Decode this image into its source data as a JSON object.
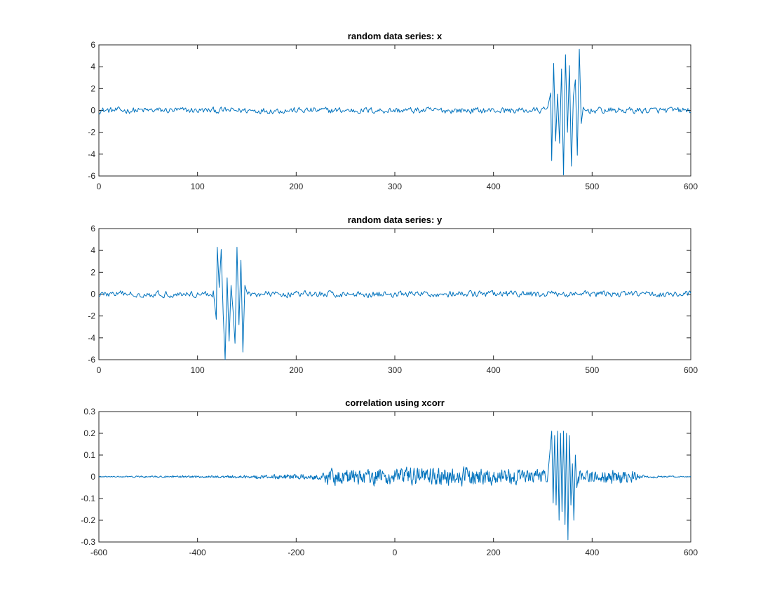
{
  "chart_data": [
    {
      "type": "line",
      "title": "random data series: x",
      "xlabel": "",
      "ylabel": "",
      "xlim": [
        0,
        600
      ],
      "ylim": [
        -6,
        6
      ],
      "x_ticks": [
        0,
        100,
        200,
        300,
        400,
        500,
        600
      ],
      "y_ticks": [
        -6,
        -4,
        -2,
        0,
        2,
        4,
        6
      ],
      "x_tick_labels": [
        "0",
        "100",
        "200",
        "300",
        "400",
        "500",
        "600"
      ],
      "y_tick_labels": [
        "-6",
        "-4",
        "-2",
        "0",
        "2",
        "4",
        "6"
      ],
      "grid": false,
      "color": "#0072bd",
      "series": [
        {
          "noise_range": [
            0,
            600
          ],
          "noise_amplitude": 0.25,
          "points": [
            [
              455,
              0.3
            ],
            [
              458,
              1.6
            ],
            [
              459,
              -4.6
            ],
            [
              461,
              4.3
            ],
            [
              463,
              -2.8
            ],
            [
              465,
              1.5
            ],
            [
              467,
              -3.0
            ],
            [
              469,
              3.8
            ],
            [
              471,
              -5.9
            ],
            [
              473,
              5.1
            ],
            [
              475,
              -2.0
            ],
            [
              477,
              4.1
            ],
            [
              479,
              -5.1
            ],
            [
              481,
              1.3
            ],
            [
              483,
              2.8
            ],
            [
              485,
              -4.1
            ],
            [
              487,
              5.6
            ],
            [
              489,
              -1.2
            ],
            [
              491,
              0.3
            ]
          ]
        }
      ]
    },
    {
      "type": "line",
      "title": "random data series: y",
      "xlabel": "",
      "ylabel": "",
      "xlim": [
        0,
        600
      ],
      "ylim": [
        -6,
        6
      ],
      "x_ticks": [
        0,
        100,
        200,
        300,
        400,
        500,
        600
      ],
      "y_ticks": [
        -6,
        -4,
        -2,
        0,
        2,
        4,
        6
      ],
      "x_tick_labels": [
        "0",
        "100",
        "200",
        "300",
        "400",
        "500",
        "600"
      ],
      "y_tick_labels": [
        "-6",
        "-4",
        "-2",
        "0",
        "2",
        "4",
        "6"
      ],
      "grid": false,
      "color": "#0072bd",
      "series": [
        {
          "noise_range": [
            0,
            600
          ],
          "noise_amplitude": 0.25,
          "points": [
            [
              116,
              0.3
            ],
            [
              119,
              -2.3
            ],
            [
              120,
              4.3
            ],
            [
              122,
              0.6
            ],
            [
              124,
              4.1
            ],
            [
              126,
              -1.8
            ],
            [
              128,
              -6.0
            ],
            [
              130,
              1.5
            ],
            [
              132,
              -4.3
            ],
            [
              134,
              0.8
            ],
            [
              136,
              -1.5
            ],
            [
              138,
              -4.5
            ],
            [
              140,
              4.3
            ],
            [
              142,
              -2.8
            ],
            [
              144,
              3.1
            ],
            [
              146,
              -5.3
            ],
            [
              148,
              0.8
            ],
            [
              150,
              0.2
            ]
          ]
        }
      ]
    },
    {
      "type": "line",
      "title": "correlation using xcorr",
      "xlabel": "",
      "ylabel": "",
      "xlim": [
        -600,
        600
      ],
      "ylim": [
        -0.3,
        0.3
      ],
      "x_ticks": [
        -600,
        -400,
        -200,
        0,
        200,
        400,
        600
      ],
      "y_ticks": [
        -0.3,
        -0.2,
        -0.1,
        0,
        0.1,
        0.2,
        0.3
      ],
      "x_tick_labels": [
        "-600",
        "-400",
        "-200",
        "0",
        "200",
        "400",
        "600"
      ],
      "y_tick_labels": [
        "-0.3",
        "-0.2",
        "-0.1",
        "0",
        "0.1",
        "0.2",
        "0.3"
      ],
      "grid": false,
      "color": "#0072bd",
      "series": [
        {
          "noise_envelope": [
            [
              -600,
              0.002
            ],
            [
              -300,
              0.006
            ],
            [
              -150,
              0.012
            ],
            [
              -140,
              0.03
            ],
            [
              100,
              0.035
            ],
            [
              300,
              0.025
            ],
            [
              480,
              0.025
            ],
            [
              500,
              0.006
            ],
            [
              600,
              0.001
            ]
          ],
          "points": [
            [
              310,
              0.0
            ],
            [
              318,
              0.21
            ],
            [
              321,
              -0.12
            ],
            [
              324,
              0.19
            ],
            [
              327,
              -0.13
            ],
            [
              330,
              0.21
            ],
            [
              333,
              -0.2
            ],
            [
              336,
              0.2
            ],
            [
              339,
              -0.16
            ],
            [
              342,
              0.21
            ],
            [
              345,
              -0.22
            ],
            [
              348,
              0.2
            ],
            [
              351,
              -0.29
            ],
            [
              354,
              0.19
            ],
            [
              357,
              -0.13
            ],
            [
              360,
              0.06
            ],
            [
              363,
              -0.2
            ],
            [
              366,
              0.1
            ],
            [
              369,
              -0.05
            ],
            [
              372,
              0.0
            ]
          ]
        }
      ]
    }
  ]
}
